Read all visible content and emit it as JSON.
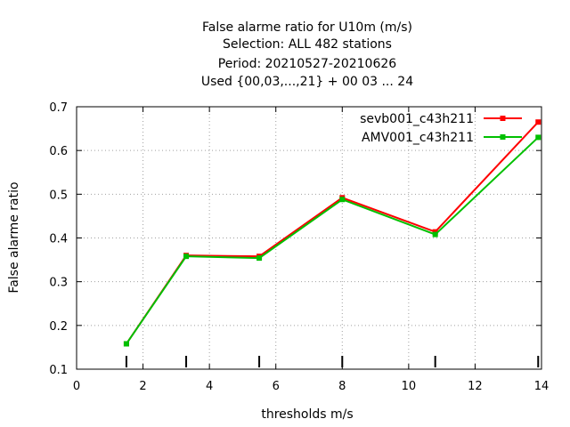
{
  "chart_data": {
    "type": "line",
    "title": [
      "False alarme ratio  for U10m (m/s)",
      "Selection: ALL    482 stations",
      "Period: 20210527-20210626",
      "Used {00,03,...,21} + 00 03 ... 24"
    ],
    "xlabel": "thresholds m/s",
    "ylabel": "False alarme ratio",
    "xlim": [
      0,
      14
    ],
    "ylim": [
      0.1,
      0.7
    ],
    "xticks": [
      0,
      2,
      4,
      6,
      8,
      10,
      12,
      14
    ],
    "yticks": [
      0.1,
      0.2,
      0.3,
      0.4,
      0.5,
      0.6,
      0.7
    ],
    "grid": true,
    "legend_position": "top-right",
    "threshold_markers": [
      1.5,
      3.3,
      5.5,
      8,
      10.8,
      13.9
    ],
    "series": [
      {
        "name": "sevb001_c43h211",
        "color": "#ff0000",
        "x": [
          1.5,
          3.3,
          5.5,
          8,
          10.8,
          13.9
        ],
        "y": [
          0.158,
          0.36,
          0.358,
          0.492,
          0.414,
          0.665
        ]
      },
      {
        "name": "AMV001_c43h211",
        "color": "#00c000",
        "x": [
          1.5,
          3.3,
          5.5,
          8,
          10.8,
          13.9
        ],
        "y": [
          0.158,
          0.358,
          0.354,
          0.488,
          0.408,
          0.63
        ]
      }
    ]
  }
}
